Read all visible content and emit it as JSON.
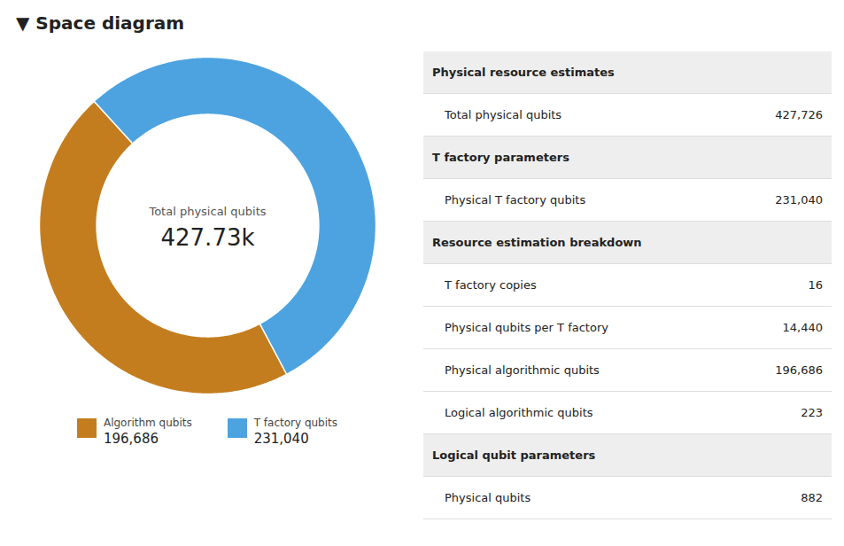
{
  "chart_data": [
    {
      "type": "pie",
      "title": "▼ Space diagram",
      "categories": [
        "Algorithm qubits",
        "T factory qubits"
      ],
      "values": [
        196686,
        231040
      ],
      "value_labels": [
        "196,686",
        "231,040"
      ],
      "colors": [
        "#c47d1e",
        "#4da3e0"
      ],
      "annotations": [
        "Total physical qubits",
        "427.73k"
      ],
      "legend": "bottom"
    },
    {
      "type": "table",
      "sections": [
        {
          "header": "Physical resource estimates",
          "rows": [
            {
              "label": "Total physical qubits",
              "value": "427,726"
            }
          ]
        },
        {
          "header": "T factory parameters",
          "rows": [
            {
              "label": "Physical T factory qubits",
              "value": "231,040"
            }
          ]
        },
        {
          "header": "Resource estimation breakdown",
          "rows": [
            {
              "label": "T factory copies",
              "value": "16"
            },
            {
              "label": "Physical qubits per T factory",
              "value": "14,440"
            },
            {
              "label": "Physical algorithmic qubits",
              "value": "196,686"
            },
            {
              "label": "Logical algorithmic qubits",
              "value": "223"
            }
          ]
        },
        {
          "header": "Logical qubit parameters",
          "rows": [
            {
              "label": "Physical qubits",
              "value": "882"
            }
          ]
        }
      ]
    }
  ]
}
